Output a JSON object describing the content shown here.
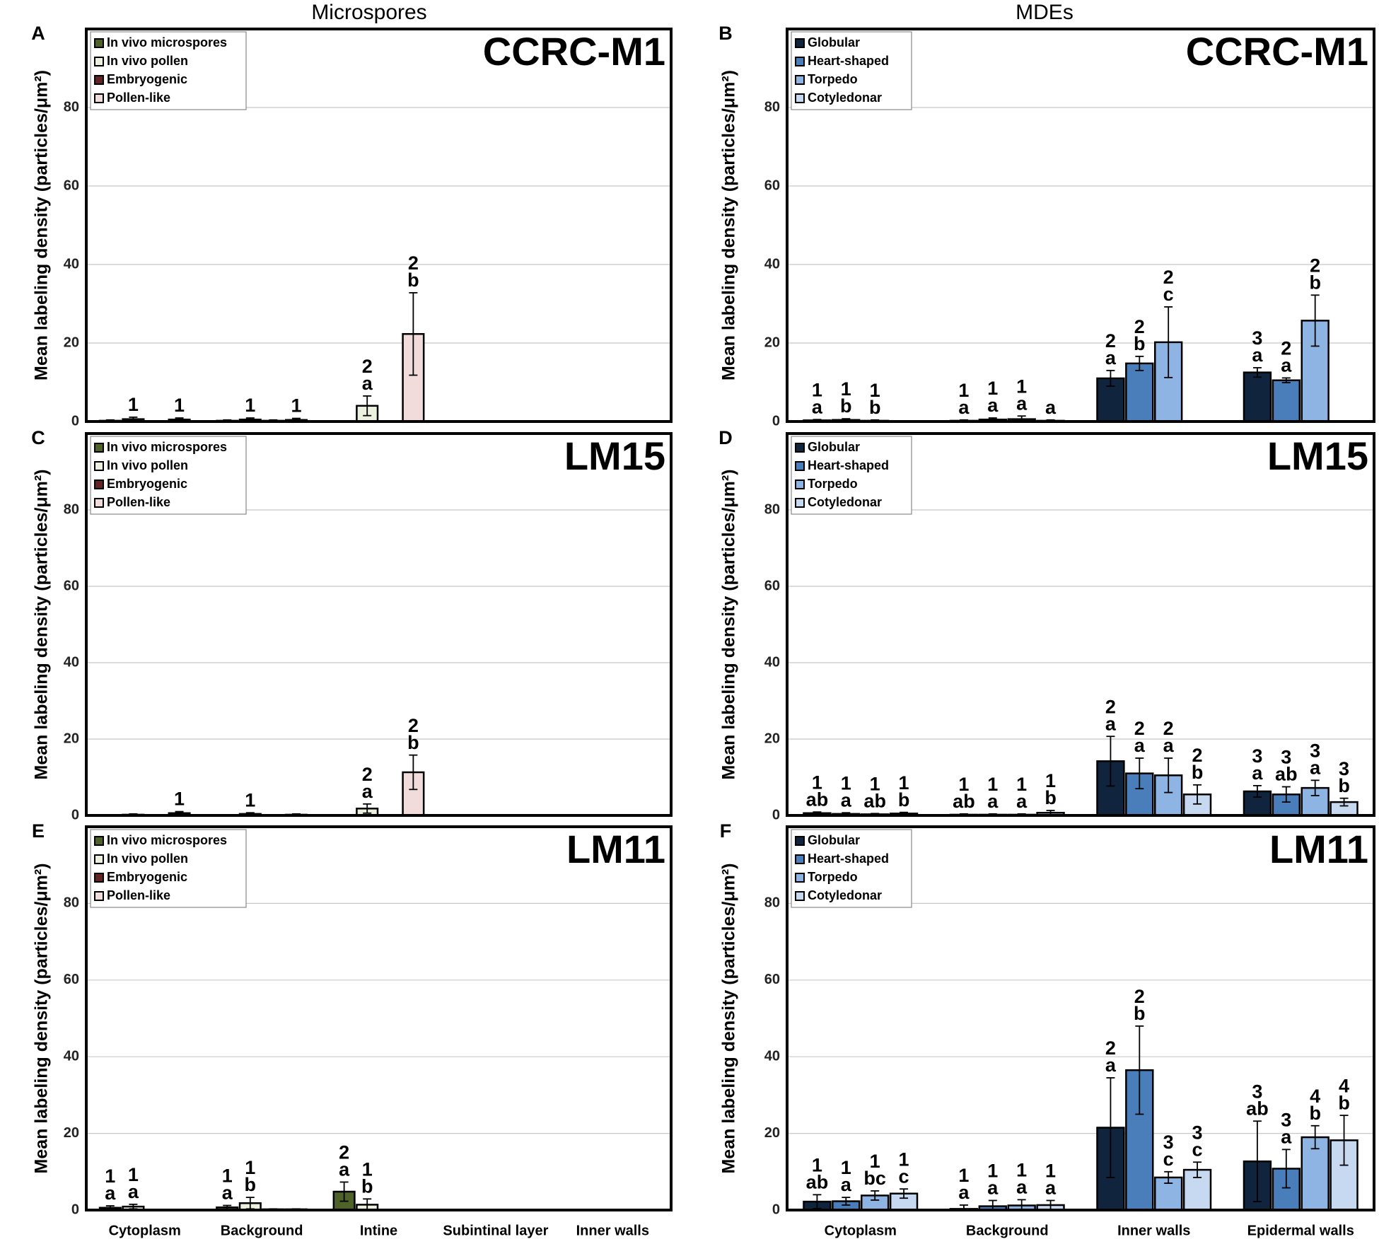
{
  "column_titles": [
    "Microspores",
    "MDEs"
  ],
  "chart_data": [
    {
      "type": "bar",
      "panel": "A",
      "title": "CCRC-M1",
      "y_label": "Mean labeling density (particles/μm²)",
      "categories": [
        null,
        null,
        null,
        null,
        null
      ],
      "ylim": [
        0,
        100
      ],
      "yticks": [
        0,
        20,
        40,
        60,
        80
      ],
      "grid": true,
      "legend": "upper left",
      "series": [
        {
          "name": "In vivo microspores",
          "color": "#4f6228",
          "values": [
            0.2,
            0.2,
            null,
            null,
            null
          ],
          "errors": [
            0.2,
            0.2,
            null,
            null,
            null
          ],
          "sig_numbers": [
            null,
            null,
            null,
            null,
            null
          ],
          "sig_letters": [
            null,
            null,
            null,
            null,
            null
          ]
        },
        {
          "name": "In vivo pollen",
          "color": "#ebf1de",
          "values": [
            0.6,
            0.5,
            4.0,
            null,
            null
          ],
          "errors": [
            0.5,
            0.4,
            2.5,
            null,
            null
          ],
          "sig_numbers": [
            "1",
            "1",
            "2",
            null,
            null
          ],
          "sig_letters": [
            null,
            null,
            "a",
            null,
            null
          ]
        },
        {
          "name": "Embryogenic",
          "color": "#632523",
          "values": [
            0.1,
            0.2,
            null,
            null,
            null
          ],
          "errors": [
            0.1,
            0.2,
            null,
            null,
            null
          ],
          "sig_numbers": [
            null,
            null,
            null,
            null,
            null
          ],
          "sig_letters": [
            null,
            null,
            null,
            null,
            null
          ]
        },
        {
          "name": "Pollen-like",
          "color": "#f2dcdb",
          "values": [
            0.5,
            0.4,
            22.3,
            null,
            null
          ],
          "errors": [
            0.4,
            0.4,
            10.5,
            null,
            null
          ],
          "sig_numbers": [
            "1",
            "1",
            "2",
            null,
            null
          ],
          "sig_letters": [
            null,
            null,
            "b",
            null,
            null
          ]
        }
      ]
    },
    {
      "type": "bar",
      "panel": "B",
      "title": "CCRC-M1",
      "y_label": "Mean labeling density (particles/μm²)",
      "categories": [
        null,
        null,
        null,
        null
      ],
      "ylim": [
        0,
        100
      ],
      "yticks": [
        0,
        20,
        40,
        60,
        80
      ],
      "grid": true,
      "legend": "upper left",
      "series": [
        {
          "name": "Globular",
          "color": "#10243e",
          "values": [
            0.3,
            0.2,
            11.0,
            12.5
          ],
          "errors": [
            0.2,
            0.2,
            2.0,
            1.2
          ],
          "sig_numbers": [
            "1",
            "1",
            "2",
            "3"
          ],
          "sig_letters": [
            "a",
            "a",
            "a",
            "a"
          ]
        },
        {
          "name": "Heart-shaped",
          "color": "#4a7ebb",
          "values": [
            0.4,
            0.5,
            14.8,
            10.5
          ],
          "errors": [
            0.3,
            0.4,
            1.8,
            0.6
          ],
          "sig_numbers": [
            "1",
            "1",
            "2",
            "2"
          ],
          "sig_letters": [
            "b",
            "a",
            "b",
            "a"
          ]
        },
        {
          "name": "Torpedo",
          "color": "#8eb4e3",
          "values": [
            0.2,
            0.6,
            20.2,
            25.7
          ],
          "errors": [
            0.2,
            0.8,
            9.0,
            6.5
          ],
          "sig_numbers": [
            "1",
            "1",
            "2",
            "2"
          ],
          "sig_letters": [
            "b",
            "a",
            "c",
            "b"
          ]
        },
        {
          "name": "Cotyledonar",
          "color": "#c6d9f1",
          "values": [
            null,
            0.2,
            null,
            null
          ],
          "errors": [
            null,
            0.2,
            null,
            null
          ],
          "sig_numbers": [
            null,
            null,
            null,
            null
          ],
          "sig_letters": [
            null,
            "a",
            null,
            null
          ]
        }
      ]
    },
    {
      "type": "bar",
      "panel": "C",
      "title": "LM15",
      "y_label": "Mean labeling density (particles/μm²)",
      "categories": [
        null,
        null,
        null,
        null,
        null
      ],
      "ylim": [
        0,
        100
      ],
      "yticks": [
        0,
        20,
        40,
        60,
        80
      ],
      "grid": true,
      "legend": "upper left",
      "series": [
        {
          "name": "In vivo microspores",
          "color": "#4f6228",
          "values": [
            0.1,
            0.1,
            null,
            null,
            null
          ],
          "errors": [
            0.1,
            0.1,
            null,
            null,
            null
          ],
          "sig_numbers": [
            null,
            null,
            null,
            null,
            null
          ],
          "sig_letters": [
            null,
            null,
            null,
            null,
            null
          ]
        },
        {
          "name": "In vivo pollen",
          "color": "#ebf1de",
          "values": [
            0.2,
            0.4,
            1.8,
            null,
            null
          ],
          "errors": [
            0.2,
            0.3,
            1.2,
            null,
            null
          ],
          "sig_numbers": [
            null,
            "1",
            "2",
            null,
            null
          ],
          "sig_letters": [
            null,
            null,
            "a",
            null,
            null
          ]
        },
        {
          "name": "Embryogenic",
          "color": "#632523",
          "values": [
            0.1,
            0.1,
            null,
            null,
            null
          ],
          "errors": [
            0.1,
            0.1,
            null,
            null,
            null
          ],
          "sig_numbers": [
            null,
            null,
            null,
            null,
            null
          ],
          "sig_letters": [
            null,
            null,
            null,
            null,
            null
          ]
        },
        {
          "name": "Pollen-like",
          "color": "#f2dcdb",
          "values": [
            0.6,
            0.2,
            11.3,
            null,
            null
          ],
          "errors": [
            0.4,
            0.2,
            4.5,
            null,
            null
          ],
          "sig_numbers": [
            "1",
            null,
            "2",
            null,
            null
          ],
          "sig_letters": [
            null,
            null,
            "b",
            null,
            null
          ]
        }
      ]
    },
    {
      "type": "bar",
      "panel": "D",
      "title": "LM15",
      "y_label": "Mean labeling density (particles/μm²)",
      "categories": [
        null,
        null,
        null,
        null
      ],
      "ylim": [
        0,
        100
      ],
      "yticks": [
        0,
        20,
        40,
        60,
        80
      ],
      "grid": true,
      "legend": "upper left",
      "series": [
        {
          "name": "Globular",
          "color": "#10243e",
          "values": [
            0.6,
            0.2,
            14.2,
            6.3
          ],
          "errors": [
            0.3,
            0.2,
            6.5,
            1.5
          ],
          "sig_numbers": [
            "1",
            "1",
            "2",
            "3"
          ],
          "sig_letters": [
            "ab",
            "ab",
            "a",
            "a"
          ]
        },
        {
          "name": "Heart-shaped",
          "color": "#4a7ebb",
          "values": [
            0.4,
            0.2,
            11.0,
            5.5
          ],
          "errors": [
            0.3,
            0.2,
            4.0,
            2.0
          ],
          "sig_numbers": [
            "1",
            "1",
            "2",
            "3"
          ],
          "sig_letters": [
            "a",
            "a",
            "a",
            "ab"
          ]
        },
        {
          "name": "Torpedo",
          "color": "#8eb4e3",
          "values": [
            0.3,
            0.2,
            10.5,
            7.2
          ],
          "errors": [
            0.2,
            0.2,
            4.5,
            2.0
          ],
          "sig_numbers": [
            "1",
            "1",
            "2",
            "3"
          ],
          "sig_letters": [
            "ab",
            "a",
            "a",
            "a"
          ]
        },
        {
          "name": "Cotyledonar",
          "color": "#c6d9f1",
          "values": [
            0.5,
            0.7,
            5.5,
            3.5
          ],
          "errors": [
            0.3,
            0.6,
            2.5,
            1.0
          ],
          "sig_numbers": [
            "1",
            "1",
            "2",
            "3"
          ],
          "sig_letters": [
            "b",
            "b",
            "b",
            "b"
          ]
        }
      ]
    },
    {
      "type": "bar",
      "panel": "E",
      "title": "LM11",
      "y_label": "Mean labeling density (particles/μm²)",
      "categories": [
        "Cytoplasm",
        "Background",
        "Intine",
        "Subintinal layer",
        "Inner walls"
      ],
      "ylim": [
        0,
        100
      ],
      "yticks": [
        0,
        20,
        40,
        60,
        80
      ],
      "grid": true,
      "legend": "upper left",
      "series": [
        {
          "name": "In vivo microspores",
          "color": "#4f6228",
          "values": [
            0.6,
            0.7,
            4.8,
            null,
            null
          ],
          "errors": [
            0.5,
            0.5,
            2.5,
            null,
            null
          ],
          "sig_numbers": [
            "1",
            "1",
            "2",
            null,
            null
          ],
          "sig_letters": [
            "a",
            "a",
            "a",
            null,
            null
          ]
        },
        {
          "name": "In vivo pollen",
          "color": "#ebf1de",
          "values": [
            0.9,
            1.8,
            1.4,
            null,
            null
          ],
          "errors": [
            0.6,
            1.5,
            1.5,
            null,
            null
          ],
          "sig_numbers": [
            "1",
            "1",
            "1",
            null,
            null
          ],
          "sig_letters": [
            "a",
            "b",
            "b",
            null,
            null
          ]
        },
        {
          "name": "Embryogenic",
          "color": "#632523",
          "values": [
            null,
            0.2,
            null,
            null,
            null
          ],
          "errors": [
            null,
            0.1,
            null,
            null,
            null
          ],
          "sig_numbers": [
            null,
            null,
            null,
            null,
            null
          ],
          "sig_letters": [
            null,
            null,
            null,
            null,
            null
          ]
        },
        {
          "name": "Pollen-like",
          "color": "#f2dcdb",
          "values": [
            null,
            0.2,
            null,
            null,
            null
          ],
          "errors": [
            null,
            0.1,
            null,
            null,
            null
          ],
          "sig_numbers": [
            null,
            null,
            null,
            null,
            null
          ],
          "sig_letters": [
            null,
            null,
            null,
            null,
            null
          ]
        }
      ]
    },
    {
      "type": "bar",
      "panel": "F",
      "title": "LM11",
      "y_label": "Mean labeling density (particles/μm²)",
      "categories": [
        "Cytoplasm",
        "Background",
        "Inner walls",
        "Epidermal walls"
      ],
      "ylim": [
        0,
        100
      ],
      "yticks": [
        0,
        20,
        40,
        60,
        80
      ],
      "grid": true,
      "legend": "upper left",
      "series": [
        {
          "name": "Globular",
          "color": "#10243e",
          "values": [
            2.2,
            0.3,
            21.5,
            12.7
          ],
          "errors": [
            1.8,
            1.0,
            13.0,
            10.5
          ],
          "sig_numbers": [
            "1",
            "1",
            "2",
            "3"
          ],
          "sig_letters": [
            "ab",
            "a",
            "a",
            "ab"
          ]
        },
        {
          "name": "Heart-shaped",
          "color": "#4a7ebb",
          "values": [
            2.3,
            1.0,
            36.5,
            10.8
          ],
          "errors": [
            1.0,
            1.5,
            11.5,
            5.0
          ],
          "sig_numbers": [
            "1",
            "1",
            "2",
            "3"
          ],
          "sig_letters": [
            "a",
            "a",
            "b",
            "a"
          ]
        },
        {
          "name": "Torpedo",
          "color": "#8eb4e3",
          "values": [
            3.8,
            1.2,
            8.5,
            19.0
          ],
          "errors": [
            1.2,
            1.5,
            1.5,
            3.0
          ],
          "sig_numbers": [
            "1",
            "1",
            "3",
            "4"
          ],
          "sig_letters": [
            "bc",
            "a",
            "c",
            "b"
          ]
        },
        {
          "name": "Cotyledonar",
          "color": "#c6d9f1",
          "values": [
            4.3,
            1.3,
            10.5,
            18.2
          ],
          "errors": [
            1.2,
            1.2,
            2.0,
            6.5
          ],
          "sig_numbers": [
            "1",
            "1",
            "3",
            "4"
          ],
          "sig_letters": [
            "c",
            "a",
            "c",
            "b"
          ]
        }
      ]
    }
  ]
}
